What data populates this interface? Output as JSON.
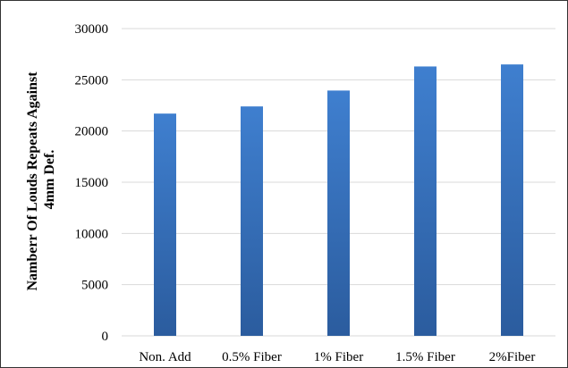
{
  "chart_data": {
    "type": "bar",
    "title": "",
    "xlabel": "",
    "ylabel": "Namberr Of Louds Repeats Against 4mm Def.",
    "ylabel_lines": [
      "Namberr Of Louds Repeats Against",
      "4mm Def."
    ],
    "categories": [
      "Non. Add",
      "0.5% Fiber",
      "1% Fiber",
      "1.5% Fiber",
      "2%Fiber"
    ],
    "values": [
      21700,
      22400,
      23950,
      26300,
      26500
    ],
    "ylim": [
      0,
      30000
    ],
    "yticks": [
      0,
      5000,
      10000,
      15000,
      20000,
      25000,
      30000
    ],
    "grid": true,
    "legend": "none",
    "colors": {
      "bar_top": "#3F7FCF",
      "bar_bottom": "#2B5C9E",
      "grid": "#D9D9D9"
    }
  }
}
